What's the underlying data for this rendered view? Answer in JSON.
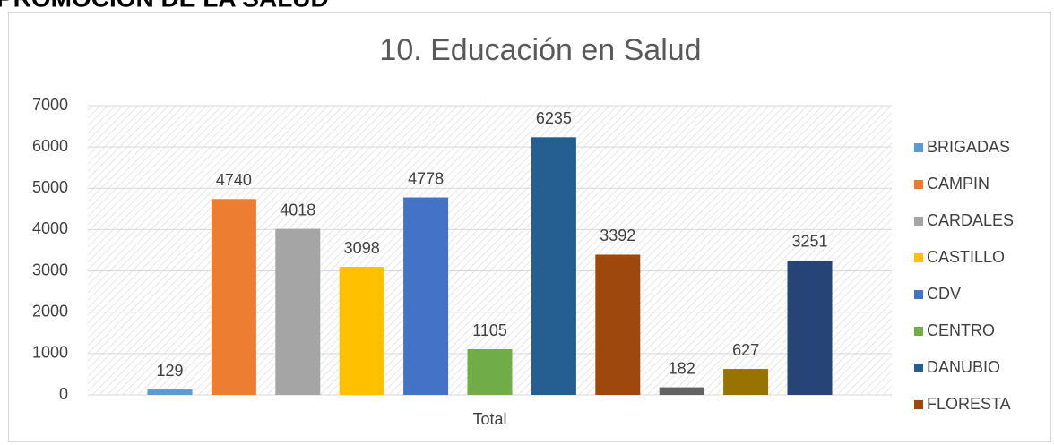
{
  "heading": "PROMOCIÓN DE LA SALUD",
  "chart_data": {
    "type": "bar",
    "title": "10. Educación en Salud",
    "categories": [
      "Total"
    ],
    "series": [
      {
        "name": "BRIGADAS",
        "color": "#5b9bd5",
        "values": [
          129
        ]
      },
      {
        "name": "CAMPIN",
        "color": "#ed7d31",
        "values": [
          4740
        ]
      },
      {
        "name": "CARDALES",
        "color": "#a5a5a5",
        "values": [
          4018
        ]
      },
      {
        "name": "CASTILLO",
        "color": "#ffc000",
        "values": [
          3098
        ]
      },
      {
        "name": "CDV",
        "color": "#4472c4",
        "values": [
          4778
        ]
      },
      {
        "name": "CENTRO",
        "color": "#70ad47",
        "values": [
          1105
        ]
      },
      {
        "name": "DANUBIO",
        "color": "#255e91",
        "values": [
          6235
        ]
      },
      {
        "name": "FLORESTA",
        "color": "#9e480e",
        "values": [
          3392
        ]
      },
      {
        "name": null,
        "color": "#636363",
        "values": [
          182
        ]
      },
      {
        "name": null,
        "color": "#997300",
        "values": [
          627
        ]
      },
      {
        "name": null,
        "color": "#264478",
        "values": [
          3251
        ]
      }
    ],
    "ylim": [
      0,
      7000
    ],
    "yticks": [
      0,
      1000,
      2000,
      3000,
      4000,
      5000,
      6000,
      7000
    ],
    "grid": true,
    "legend": "right",
    "data_labels": true
  }
}
